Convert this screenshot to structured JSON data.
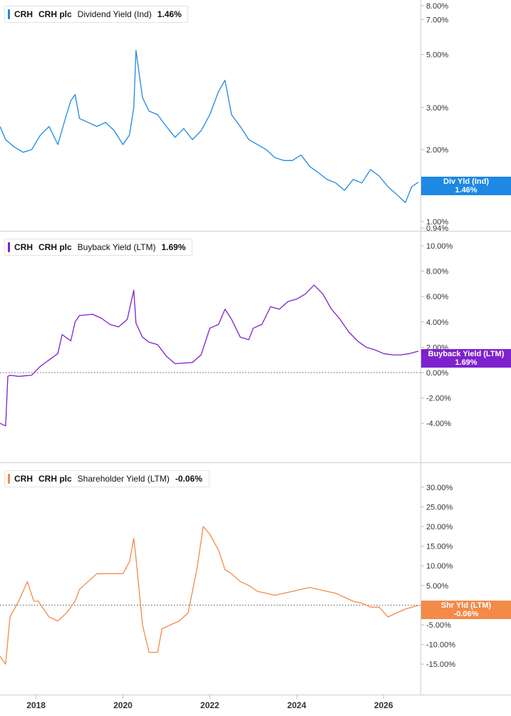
{
  "chart_data": [
    {
      "type": "line",
      "ticker": "CRH",
      "company": "CRH plc",
      "metric": "Dividend Yield (Ind)",
      "current_value": "1.46%",
      "tag_label": "Div Yld (Ind)",
      "color": "#1e88e5",
      "y_scale": "log",
      "ylim": [
        0.94,
        8.0
      ],
      "y_ticks": [
        "8.00%",
        "7.00%",
        "5.00%",
        "3.00%",
        "2.00%",
        "1.00%",
        "0.94%"
      ],
      "zero_line": false,
      "x": [
        2017.17,
        2017.3,
        2017.5,
        2017.7,
        2017.9,
        2018.1,
        2018.3,
        2018.5,
        2018.7,
        2018.8,
        2018.9,
        2019.0,
        2019.2,
        2019.4,
        2019.6,
        2019.8,
        2020.0,
        2020.15,
        2020.25,
        2020.3,
        2020.45,
        2020.6,
        2020.8,
        2021.0,
        2021.2,
        2021.4,
        2021.6,
        2021.8,
        2022.0,
        2022.2,
        2022.35,
        2022.5,
        2022.7,
        2022.9,
        2023.1,
        2023.3,
        2023.5,
        2023.7,
        2023.9,
        2024.1,
        2024.3,
        2024.5,
        2024.7,
        2024.9,
        2025.1,
        2025.3,
        2025.5,
        2025.7,
        2025.9,
        2026.1,
        2026.3,
        2026.5,
        2026.65,
        2026.8
      ],
      "y": [
        2.5,
        2.2,
        2.05,
        1.95,
        2.0,
        2.3,
        2.5,
        2.1,
        2.8,
        3.2,
        3.4,
        2.7,
        2.6,
        2.5,
        2.6,
        2.4,
        2.1,
        2.3,
        3.0,
        5.2,
        3.3,
        2.9,
        2.8,
        2.5,
        2.25,
        2.45,
        2.2,
        2.4,
        2.8,
        3.5,
        3.9,
        2.8,
        2.5,
        2.2,
        2.1,
        2.0,
        1.85,
        1.8,
        1.8,
        1.9,
        1.7,
        1.6,
        1.5,
        1.45,
        1.35,
        1.5,
        1.45,
        1.65,
        1.55,
        1.4,
        1.3,
        1.2,
        1.4,
        1.46
      ]
    },
    {
      "type": "line",
      "ticker": "CRH",
      "company": "CRH plc",
      "metric": "Buyback Yield (LTM)",
      "current_value": "1.69%",
      "tag_label": "Buyback Yield (LTM)",
      "color": "#7e22ce",
      "y_scale": "linear",
      "ylim": [
        -5.0,
        10.0
      ],
      "y_ticks": [
        "10.00%",
        "8.00%",
        "6.00%",
        "4.00%",
        "2.00%",
        "0.00%",
        "-2.00%",
        "-4.00%"
      ],
      "zero_line": true,
      "x": [
        2017.17,
        2017.3,
        2017.35,
        2017.4,
        2017.6,
        2017.9,
        2018.1,
        2018.3,
        2018.5,
        2018.6,
        2018.8,
        2018.9,
        2019.0,
        2019.3,
        2019.5,
        2019.7,
        2019.9,
        2020.1,
        2020.25,
        2020.3,
        2020.45,
        2020.6,
        2020.8,
        2021.0,
        2021.2,
        2021.4,
        2021.6,
        2021.8,
        2022.0,
        2022.2,
        2022.35,
        2022.5,
        2022.7,
        2022.9,
        2023.0,
        2023.2,
        2023.4,
        2023.6,
        2023.8,
        2024.0,
        2024.2,
        2024.4,
        2024.6,
        2024.8,
        2025.0,
        2025.2,
        2025.4,
        2025.6,
        2025.8,
        2026.0,
        2026.2,
        2026.4,
        2026.6,
        2026.8
      ],
      "y": [
        -4.0,
        -4.2,
        -0.3,
        -0.2,
        -0.3,
        -0.2,
        0.5,
        1.0,
        1.5,
        3.0,
        2.5,
        4.0,
        4.5,
        4.6,
        4.3,
        3.8,
        3.6,
        4.2,
        6.5,
        3.9,
        2.8,
        2.4,
        2.2,
        1.3,
        0.7,
        0.75,
        0.8,
        1.4,
        3.5,
        3.8,
        5.0,
        4.2,
        2.8,
        2.6,
        3.5,
        3.8,
        5.2,
        5.0,
        5.6,
        5.8,
        6.2,
        6.9,
        6.2,
        5.0,
        4.2,
        3.2,
        2.5,
        2.0,
        1.8,
        1.5,
        1.4,
        1.4,
        1.5,
        1.69
      ]
    },
    {
      "type": "line",
      "ticker": "CRH",
      "company": "CRH plc",
      "metric": "Shareholder Yield (LTM)",
      "current_value": "-0.06%",
      "tag_label": "Shr Yld (LTM)",
      "color": "#f28a48",
      "y_scale": "linear",
      "ylim": [
        -17.5,
        32.5
      ],
      "y_ticks": [
        "30.00%",
        "25.00%",
        "20.00%",
        "15.00%",
        "10.00%",
        "5.00%",
        "0.00%",
        "-5.00%",
        "-10.00%",
        "-15.00%"
      ],
      "zero_line": true,
      "x": [
        2017.17,
        2017.3,
        2017.4,
        2017.6,
        2017.8,
        2017.95,
        2018.05,
        2018.3,
        2018.5,
        2018.7,
        2018.9,
        2019.0,
        2019.2,
        2019.4,
        2019.6,
        2019.8,
        2020.0,
        2020.15,
        2020.25,
        2020.3,
        2020.45,
        2020.6,
        2020.8,
        2020.9,
        2021.1,
        2021.3,
        2021.5,
        2021.7,
        2021.85,
        2022.0,
        2022.2,
        2022.35,
        2022.5,
        2022.7,
        2022.9,
        2023.1,
        2023.3,
        2023.5,
        2023.7,
        2023.9,
        2024.1,
        2024.3,
        2024.5,
        2024.7,
        2024.9,
        2025.1,
        2025.3,
        2025.5,
        2025.7,
        2025.9,
        2026.1,
        2026.3,
        2026.5,
        2026.8
      ],
      "y": [
        -13,
        -15,
        -3,
        1,
        6,
        1,
        1,
        -3,
        -4,
        -2,
        1,
        4,
        6,
        8,
        8,
        8,
        8,
        11,
        17,
        12,
        -5,
        -12,
        -12,
        -6,
        -5,
        -4,
        -2,
        9,
        20,
        18,
        14,
        9,
        8,
        6,
        5,
        3.5,
        3,
        2.5,
        3,
        3.5,
        4,
        4.5,
        4,
        3.5,
        3,
        2,
        1,
        0.5,
        -0.5,
        -0.5,
        -3,
        -2,
        -1,
        -0.06
      ]
    }
  ],
  "x_axis": {
    "range": [
      2017.17,
      2026.85
    ],
    "ticks": [
      2018,
      2020,
      2022,
      2024,
      2026
    ],
    "labels": [
      "2018",
      "2020",
      "2022",
      "2024",
      "2026"
    ]
  }
}
